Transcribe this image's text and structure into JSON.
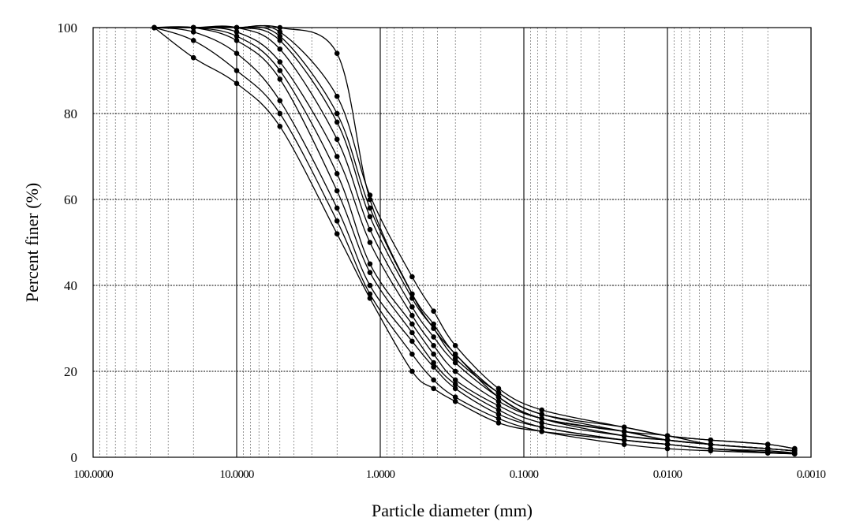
{
  "chart_data": {
    "type": "line",
    "title": "",
    "xlabel": "Particle diameter (mm)",
    "ylabel": "Percent finer (%)",
    "x_scale": "log",
    "x_reversed": true,
    "xlim": [
      100,
      0.001
    ],
    "ylim": [
      0,
      100
    ],
    "x_tick_values": [
      100,
      10,
      1,
      0.1,
      0.01,
      0.001
    ],
    "x_tick_labels": [
      "100.0000",
      "10.0000",
      "1.0000",
      "0.1000",
      "0.0100",
      "0.0010"
    ],
    "y_tick_values": [
      0,
      20,
      40,
      60,
      80,
      100
    ],
    "y_tick_labels": [
      "0",
      "20",
      "40",
      "60",
      "80",
      "100"
    ],
    "grid": true,
    "legend": "none",
    "line_color": "#000000",
    "series": [
      {
        "x": [
          37.5,
          20,
          10,
          5,
          2,
          1.18,
          0.6,
          0.425,
          0.3,
          0.15,
          0.075,
          0.02,
          0.01,
          0.005,
          0.002,
          0.0013
        ],
        "y": [
          100,
          93,
          87,
          77,
          52,
          37,
          20,
          16,
          13,
          8,
          6,
          4,
          3,
          2,
          1.5,
          1
        ]
      },
      {
        "x": [
          37.5,
          20,
          10,
          5,
          2,
          1.18,
          0.6,
          0.425,
          0.3,
          0.15,
          0.075,
          0.02,
          0.01,
          0.005,
          0.002,
          0.0013
        ],
        "y": [
          100,
          97,
          90,
          80,
          55,
          38,
          24,
          18,
          14,
          9,
          6,
          3,
          2,
          1.5,
          1,
          0.8
        ]
      },
      {
        "x": [
          37.5,
          20,
          10,
          5,
          2,
          1.18,
          0.6,
          0.425,
          0.3,
          0.15,
          0.075,
          0.02,
          0.01,
          0.005,
          0.002,
          0.0013
        ],
        "y": [
          100,
          99,
          94,
          83,
          58,
          40,
          27,
          21,
          16,
          10,
          7,
          4,
          3,
          2,
          1.2,
          1
        ]
      },
      {
        "x": [
          37.5,
          20,
          10,
          5,
          2,
          1.18,
          0.6,
          0.425,
          0.3,
          0.15,
          0.075,
          0.02,
          0.01,
          0.005,
          0.002,
          0.0013
        ],
        "y": [
          100,
          100,
          97,
          88,
          62,
          43,
          29,
          22,
          17,
          11,
          7,
          4,
          3,
          2,
          1,
          0.8
        ]
      },
      {
        "x": [
          37.5,
          20,
          10,
          5,
          2,
          1.18,
          0.6,
          0.425,
          0.3,
          0.15,
          0.075,
          0.02,
          0.01,
          0.005,
          0.002,
          0.0013
        ],
        "y": [
          100,
          100,
          98,
          90,
          66,
          45,
          31,
          24,
          18,
          12,
          8,
          5,
          4,
          3,
          2,
          1.5
        ]
      },
      {
        "x": [
          37.5,
          20,
          10,
          5,
          2,
          1.18,
          0.6,
          0.425,
          0.3,
          0.15,
          0.075,
          0.02,
          0.01,
          0.005,
          0.002,
          0.0013
        ],
        "y": [
          100,
          100,
          99,
          92,
          70,
          50,
          33,
          26,
          20,
          13,
          9,
          6,
          4,
          3,
          2,
          1.5
        ]
      },
      {
        "x": [
          37.5,
          20,
          10,
          5,
          2,
          1.18,
          0.6,
          0.425,
          0.3,
          0.15,
          0.075,
          0.02,
          0.01,
          0.005,
          0.002,
          0.0013
        ],
        "y": [
          100,
          100,
          100,
          95,
          74,
          53,
          35,
          28,
          22,
          14,
          9,
          6,
          5,
          3,
          2,
          1.5
        ]
      },
      {
        "x": [
          37.5,
          20,
          10,
          5,
          2,
          1.18,
          0.6,
          0.425,
          0.3,
          0.15,
          0.075,
          0.02,
          0.01,
          0.005,
          0.002,
          0.0013
        ],
        "y": [
          100,
          100,
          100,
          97,
          78,
          56,
          37,
          30,
          23,
          15,
          10,
          7,
          5,
          4,
          3,
          2
        ]
      },
      {
        "x": [
          37.5,
          20,
          10,
          5,
          2,
          1.18,
          0.6,
          0.425,
          0.3,
          0.15,
          0.075,
          0.02,
          0.01,
          0.005,
          0.002,
          0.0013
        ],
        "y": [
          100,
          100,
          100,
          98,
          80,
          58,
          38,
          31,
          24,
          15,
          10,
          6,
          4,
          3,
          2,
          1.5
        ]
      },
      {
        "x": [
          37.5,
          20,
          10,
          5,
          2,
          1.18,
          0.6,
          0.425,
          0.3,
          0.15,
          0.075,
          0.02,
          0.01,
          0.005,
          0.002,
          0.0013
        ],
        "y": [
          100,
          100,
          100,
          99,
          84,
          61,
          42,
          34,
          26,
          16,
          11,
          7,
          5,
          4,
          3,
          2
        ]
      },
      {
        "x": [
          37.5,
          20,
          10,
          5,
          2,
          1.18,
          0.6,
          0.425,
          0.3,
          0.15,
          0.075,
          0.02,
          0.01,
          0.005,
          0.002,
          0.0013
        ],
        "y": [
          100,
          100,
          100,
          100,
          94,
          60,
          38,
          30,
          24,
          14,
          9,
          5,
          4,
          3,
          2,
          1.5
        ]
      }
    ]
  }
}
